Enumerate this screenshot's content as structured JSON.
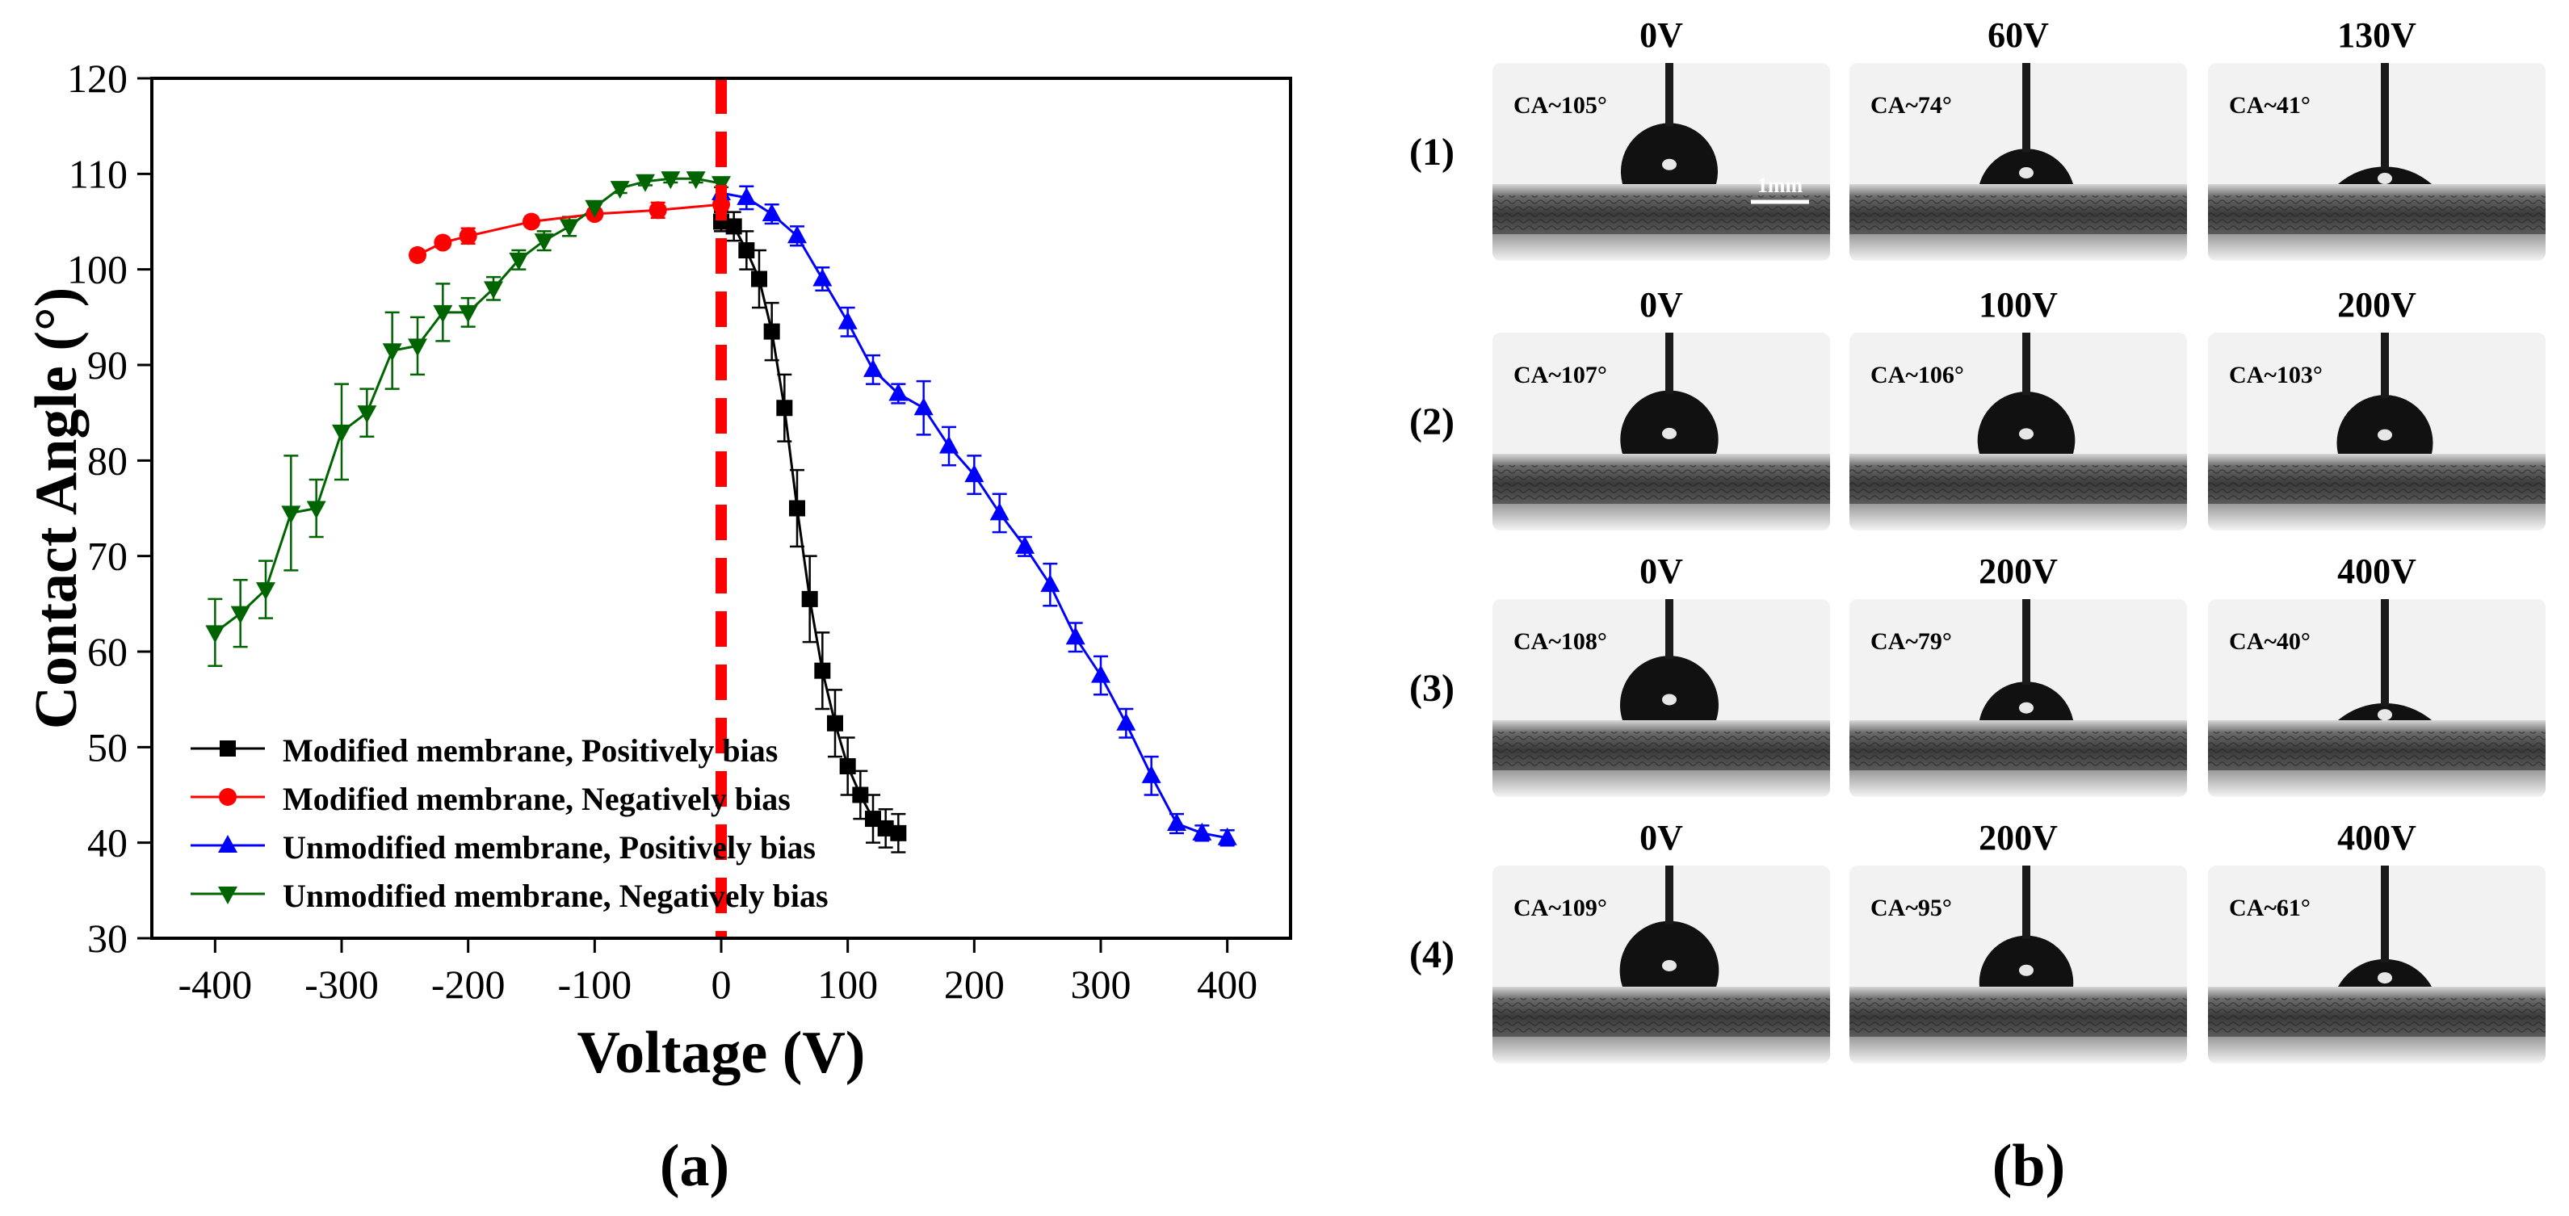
{
  "panels": {
    "a_label": "(a)",
    "b_label": "(b)"
  },
  "chart_data": {
    "type": "line",
    "title": "",
    "xlabel": "Voltage (V)",
    "ylabel": "Contact Angle (°)",
    "xlim": [
      -450,
      450
    ],
    "ylim": [
      30,
      120
    ],
    "xticks": [
      -400,
      -300,
      -200,
      -100,
      0,
      100,
      200,
      300,
      400
    ],
    "yticks": [
      30,
      40,
      50,
      60,
      70,
      80,
      90,
      100,
      110,
      120
    ],
    "grid": false,
    "legend_position": "bottom-left",
    "reference_line": {
      "x": 0,
      "color": "#ff0000",
      "style": "dashed"
    },
    "series": [
      {
        "name": "Modified membrane, Positively bias",
        "color": "#000000",
        "marker": "square",
        "x": [
          0,
          10,
          20,
          30,
          40,
          50,
          60,
          70,
          80,
          90,
          100,
          110,
          120,
          130,
          140
        ],
        "y": [
          105,
          104.5,
          102,
          99,
          93.5,
          85.5,
          75,
          65.5,
          58,
          52.5,
          48,
          45,
          42.5,
          41.5,
          41
        ],
        "err": [
          1,
          1.5,
          2,
          3,
          3,
          3.5,
          4,
          4.5,
          4,
          3.5,
          3,
          2.5,
          2.5,
          2,
          2
        ]
      },
      {
        "name": "Modified membrane, Negatively bias",
        "color": "#ff0000",
        "marker": "circle",
        "x": [
          -240,
          -220,
          -200,
          -150,
          -100,
          -50,
          0
        ],
        "y": [
          101.5,
          102.8,
          103.5,
          105,
          105.8,
          106.2,
          106.8
        ],
        "err": [
          0.5,
          0.5,
          0.8,
          0.5,
          0.5,
          0.8,
          0.6
        ]
      },
      {
        "name": "Unmodified membrane, Positively bias",
        "color": "#0000ff",
        "marker": "triangle-up",
        "x": [
          0,
          20,
          40,
          60,
          80,
          100,
          120,
          140,
          160,
          180,
          200,
          220,
          240,
          260,
          280,
          300,
          320,
          340,
          360,
          380,
          400
        ],
        "y": [
          108,
          107.5,
          105.8,
          103.5,
          99,
          94.5,
          89.5,
          87,
          85.5,
          81.5,
          78.5,
          74.5,
          71,
          67,
          61.5,
          57.5,
          52.5,
          47,
          42,
          41,
          40.5
        ],
        "err": [
          1.5,
          1.2,
          1,
          1,
          1.2,
          1.5,
          1.5,
          1,
          2.8,
          2,
          2,
          2,
          1,
          2.2,
          1.5,
          2,
          1.5,
          2,
          1,
          0.8,
          0.8
        ]
      },
      {
        "name": "Unmodified membrane, Negatively bias",
        "color": "#006400",
        "marker": "triangle-down",
        "x": [
          -400,
          -380,
          -360,
          -340,
          -320,
          -300,
          -280,
          -260,
          -240,
          -220,
          -200,
          -180,
          -160,
          -140,
          -120,
          -100,
          -80,
          -60,
          -40,
          -20,
          0
        ],
        "y": [
          62,
          64,
          66.5,
          74.5,
          75,
          83,
          85,
          91.5,
          92,
          95.5,
          95.5,
          98,
          101,
          103,
          104.5,
          106.5,
          108.5,
          109.2,
          109.5,
          109.5,
          109
        ],
        "err": [
          3.5,
          3.5,
          3,
          6,
          3,
          5,
          2.5,
          4,
          3,
          3,
          1.5,
          1.2,
          1,
          1,
          1,
          0.6,
          0.5,
          0.4,
          0.4,
          0.4,
          0.4
        ]
      }
    ]
  },
  "droplet_grid": {
    "scale_bar_label": "1mm",
    "rows": [
      {
        "label": "(1)",
        "cells": [
          {
            "voltage": "0V",
            "ca": "CA~105°",
            "angle": 105
          },
          {
            "voltage": "60V",
            "ca": "CA~74°",
            "angle": 74
          },
          {
            "voltage": "130V",
            "ca": "CA~41°",
            "angle": 41
          }
        ]
      },
      {
        "label": "(2)",
        "cells": [
          {
            "voltage": "0V",
            "ca": "CA~107°",
            "angle": 107
          },
          {
            "voltage": "100V",
            "ca": "CA~106°",
            "angle": 106
          },
          {
            "voltage": "200V",
            "ca": "CA~103°",
            "angle": 103
          }
        ]
      },
      {
        "label": "(3)",
        "cells": [
          {
            "voltage": "0V",
            "ca": "CA~108°",
            "angle": 108
          },
          {
            "voltage": "200V",
            "ca": "CA~79°",
            "angle": 79
          },
          {
            "voltage": "400V",
            "ca": "CA~40°",
            "angle": 40
          }
        ]
      },
      {
        "label": "(4)",
        "cells": [
          {
            "voltage": "0V",
            "ca": "CA~109°",
            "angle": 109
          },
          {
            "voltage": "200V",
            "ca": "CA~95°",
            "angle": 95
          },
          {
            "voltage": "400V",
            "ca": "CA~61°",
            "angle": 61
          }
        ]
      }
    ]
  }
}
